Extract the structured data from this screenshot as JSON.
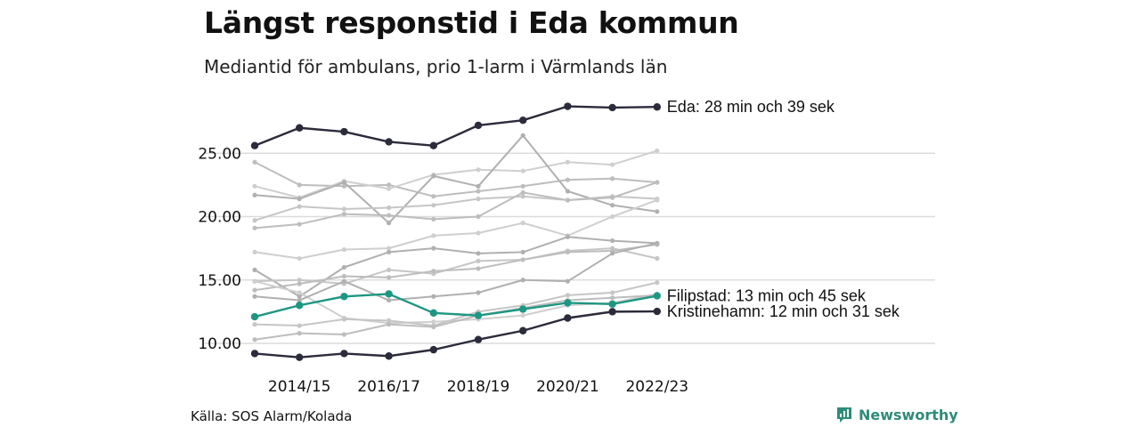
{
  "header": {
    "title": "Längst responstid i Eda kommun",
    "subtitle": "Mediantid för ambulans, prio 1-larm i Värmlands län"
  },
  "footer": {
    "source": "Källa: SOS Alarm/Kolada",
    "brand": "Newsworthy",
    "brand_icon": "bar-chart-speech-icon",
    "brand_color": "#2e8b7a"
  },
  "chart_data": {
    "type": "line",
    "title": "",
    "xlabel": "",
    "ylabel": "",
    "x": [
      "2014",
      "2014/15",
      "2015/16",
      "2016/17",
      "2017/18",
      "2018/19",
      "2019/20",
      "2020/21",
      "2021/22",
      "2022/23"
    ],
    "xticks": [
      "2014/15",
      "2016/17",
      "2018/19",
      "2020/21",
      "2022/23"
    ],
    "yticks": [
      "10.00",
      "15.00",
      "20.00",
      "25.00"
    ],
    "ylim": [
      7.5,
      29.5
    ],
    "grid": "horizontal",
    "colors": {
      "highlight_dark": "#2b2b3b",
      "highlight_teal": "#1e9682",
      "background_lines": "#bdbdbd"
    },
    "series": [
      {
        "name": "Eda",
        "label": "Eda: 28 min och 39 sek",
        "style": "dark",
        "values": [
          25.6,
          27.0,
          26.7,
          25.9,
          25.6,
          27.2,
          27.6,
          28.7,
          28.6,
          28.65
        ]
      },
      {
        "name": "Filipstad",
        "label": "Filipstad: 13 min och 45 sek",
        "style": "teal",
        "values": [
          12.1,
          13.0,
          13.7,
          13.9,
          12.4,
          12.2,
          12.7,
          13.2,
          13.1,
          13.75
        ]
      },
      {
        "name": "Kristinehamn",
        "label": "Kristinehamn: 12 min och 31 sek",
        "style": "dark",
        "values": [
          9.2,
          8.9,
          9.2,
          9.0,
          9.5,
          10.3,
          11.0,
          12.0,
          12.5,
          12.52
        ]
      },
      {
        "style": "background",
        "values": [
          24.3,
          22.5,
          22.4,
          22.5,
          21.6,
          22.0,
          22.4,
          22.9,
          23.0,
          22.7
        ]
      },
      {
        "style": "background",
        "values": [
          22.4,
          21.5,
          22.8,
          22.2,
          23.3,
          23.7,
          23.6,
          24.3,
          24.1,
          25.2
        ]
      },
      {
        "style": "background",
        "values": [
          21.7,
          21.4,
          22.7,
          19.5,
          23.2,
          22.4,
          26.4,
          22.0,
          20.9,
          20.4
        ]
      },
      {
        "style": "background",
        "values": [
          19.7,
          20.8,
          20.6,
          20.7,
          20.9,
          21.4,
          21.6,
          21.3,
          21.6,
          21.4
        ]
      },
      {
        "style": "background",
        "values": [
          19.1,
          19.4,
          20.2,
          20.1,
          19.8,
          20.0,
          21.9,
          21.3,
          21.5,
          22.7
        ]
      },
      {
        "style": "background",
        "values": [
          17.2,
          16.7,
          17.4,
          17.5,
          18.5,
          18.7,
          19.5,
          18.5,
          20.0,
          21.3
        ]
      },
      {
        "style": "background",
        "values": [
          15.8,
          13.7,
          16.0,
          17.2,
          17.5,
          17.1,
          17.2,
          18.4,
          18.1,
          17.9
        ]
      },
      {
        "style": "background",
        "values": [
          14.9,
          15.0,
          14.7,
          15.8,
          15.5,
          16.5,
          16.6,
          17.3,
          17.5,
          16.7
        ]
      },
      {
        "style": "background",
        "values": [
          14.2,
          14.7,
          15.3,
          15.2,
          15.7,
          15.9,
          16.6,
          17.2,
          17.3,
          17.8
        ]
      },
      {
        "style": "background",
        "values": [
          14.9,
          14.0,
          12.0,
          11.6,
          11.7,
          11.9,
          12.2,
          13.0,
          13.2,
          13.9
        ]
      },
      {
        "style": "background",
        "values": [
          13.7,
          13.4,
          14.9,
          13.4,
          13.7,
          14.0,
          15.0,
          14.9,
          17.1,
          17.9
        ]
      },
      {
        "style": "background",
        "values": [
          11.5,
          11.4,
          11.9,
          11.8,
          11.4,
          12.5,
          13.0,
          13.8,
          14.0,
          14.8
        ]
      },
      {
        "style": "background",
        "values": [
          10.3,
          10.8,
          10.7,
          11.5,
          11.3,
          12.2,
          12.8,
          13.4,
          13.6,
          13.8
        ]
      }
    ]
  }
}
